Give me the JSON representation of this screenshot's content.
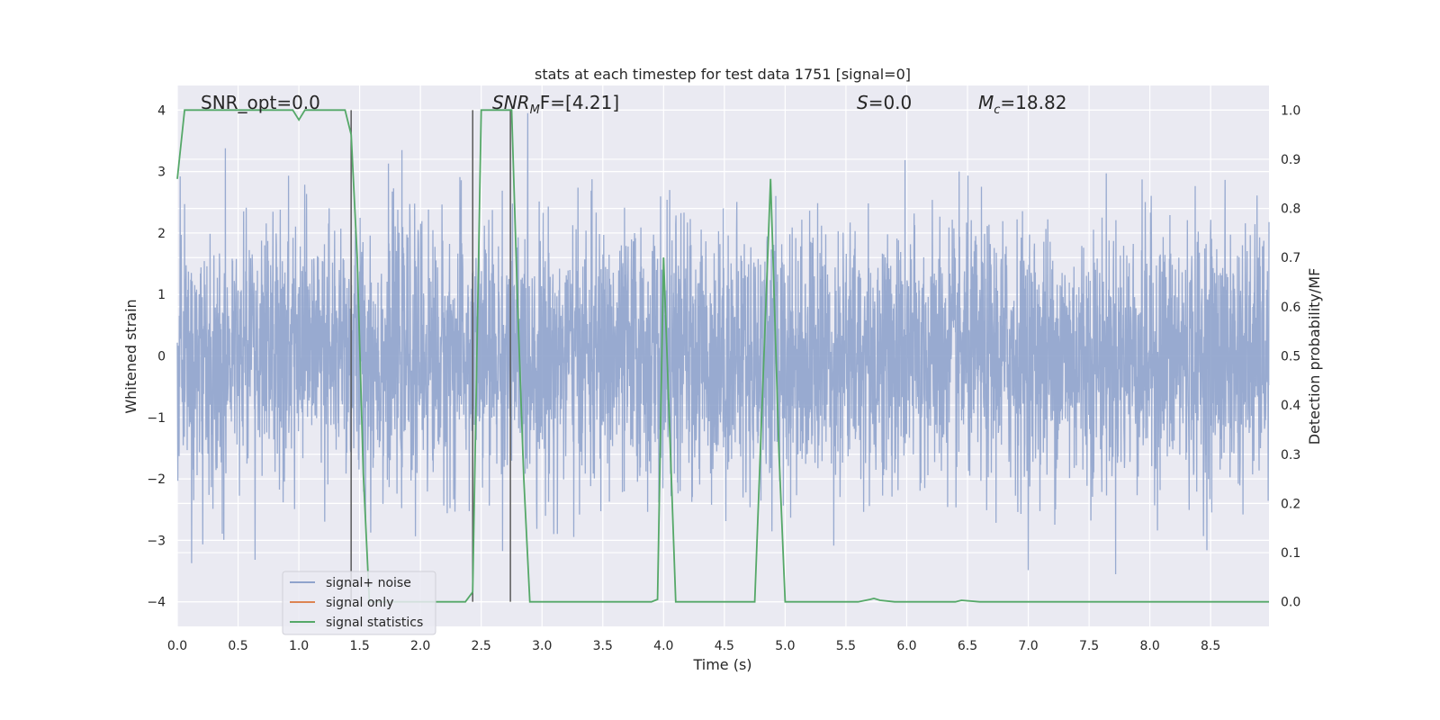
{
  "chart_data": {
    "type": "line",
    "title": "stats at each timestep for test data 1751 [signal=0]",
    "xlabel": "Time (s)",
    "ylabel_left": "Whitened strain",
    "ylabel_right": "Detection probability/MF",
    "xlim": [
      0.0,
      8.98
    ],
    "ylim_left": [
      -4.4,
      4.4
    ],
    "ylim_right": [
      -0.05,
      1.05
    ],
    "x_ticks": [
      "0.0",
      "0.5",
      "1.0",
      "1.5",
      "2.0",
      "2.5",
      "3.0",
      "3.5",
      "4.0",
      "4.5",
      "5.0",
      "5.5",
      "6.0",
      "6.5",
      "7.0",
      "7.5",
      "8.0",
      "8.5"
    ],
    "y_ticks_left": [
      "4",
      "3",
      "2",
      "1",
      "0",
      "−1",
      "−2",
      "−3",
      "−4"
    ],
    "y_ticks_right": [
      "1.0",
      "0.9",
      "0.8",
      "0.7",
      "0.6",
      "0.5",
      "0.4",
      "0.3",
      "0.2",
      "0.1",
      "0.0"
    ],
    "grid": true,
    "legend_position": "lower-left",
    "annotations": {
      "snr_opt": "SNR_opt=0.0",
      "snr_mf_base": "SNR",
      "snr_mf_sub": "M",
      "snr_mf_rest": "F=[4.21]",
      "s_italic": "S",
      "s_rest": "=0.0",
      "mc_base": "M",
      "mc_sub": "c",
      "mc_rest": "=18.82"
    },
    "vertical_lines_x": [
      1.43,
      2.43,
      2.74
    ],
    "series": [
      {
        "name": "signal+ noise",
        "color": "#8fa3cc",
        "envelope_note": "dense white-noise strain, typical amplitude about ±1.8 with peaks up to ±4"
      },
      {
        "name": "signal only",
        "color": "#dd8452",
        "values": []
      },
      {
        "name": "signal statistics",
        "color": "#55a868",
        "axis": "right",
        "x": [
          0.0,
          0.06,
          0.12,
          0.3,
          0.6,
          0.95,
          1.0,
          1.05,
          1.1,
          1.3,
          1.38,
          1.43,
          1.48,
          1.53,
          1.58,
          2.0,
          2.37,
          2.43,
          2.5,
          2.75,
          2.8,
          2.85,
          2.9,
          3.5,
          3.9,
          3.95,
          4.0,
          4.05,
          4.1,
          4.4,
          4.75,
          4.88,
          4.95,
          5.0,
          5.05,
          5.6,
          5.7,
          5.73,
          5.78,
          5.9,
          6.4,
          6.45,
          6.6,
          7.5,
          8.3,
          8.98
        ],
        "values": [
          0.86,
          1.0,
          1.0,
          1.0,
          1.0,
          1.0,
          0.98,
          1.0,
          1.0,
          1.0,
          1.0,
          0.95,
          0.7,
          0.26,
          0.0,
          0.0,
          0.0,
          0.02,
          1.0,
          1.0,
          0.6,
          0.25,
          0.0,
          0.0,
          0.0,
          0.005,
          0.7,
          0.35,
          0.0,
          0.0,
          0.0,
          0.86,
          0.3,
          0.0,
          0.0,
          0.0,
          0.005,
          0.007,
          0.003,
          0.0,
          0.0,
          0.003,
          0.0,
          0.0,
          0.0,
          0.0
        ]
      }
    ]
  }
}
